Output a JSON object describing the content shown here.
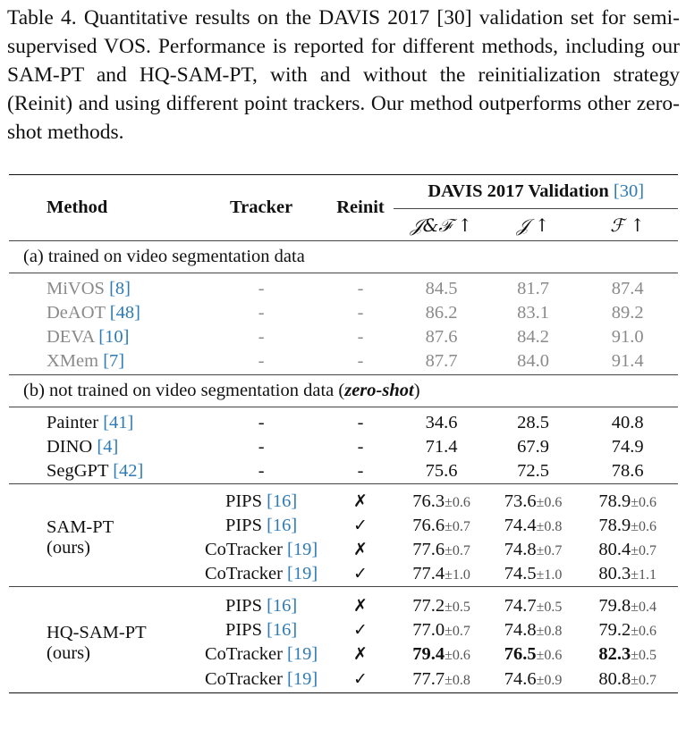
{
  "caption": "Table 4. Quantitative results on the DAVIS 2017 [30] validation set for semi-supervised VOS. Performance is reported for different methods, including our SAM-PT and HQ-SAM-PT, with and without the reinitialization strategy (Reinit) and using different point trackers. Our method outperforms other zero-shot methods.",
  "headers": {
    "method": "Method",
    "tracker": "Tracker",
    "reinit": "Reinit",
    "group": "DAVIS 2017 Validation",
    "group_ref": "[30]",
    "jf": "𝒥&ℱ ↑",
    "j": "𝒥 ↑",
    "f": "ℱ ↑"
  },
  "section_a": "(a) trained on video segmentation data",
  "section_b_prefix": "(b) not trained on video segmentation data (",
  "section_b_emph": "zero-shot",
  "section_b_suffix": ")",
  "rows_a": [
    {
      "name": "MiVOS",
      "ref": "[8]",
      "tracker": "-",
      "reinit": "-",
      "jf": "84.5",
      "j": "81.7",
      "f": "87.4"
    },
    {
      "name": "DeAOT",
      "ref": "[48]",
      "tracker": "-",
      "reinit": "-",
      "jf": "86.2",
      "j": "83.1",
      "f": "89.2"
    },
    {
      "name": "DEVA",
      "ref": "[10]",
      "tracker": "-",
      "reinit": "-",
      "jf": "87.6",
      "j": "84.2",
      "f": "91.0"
    },
    {
      "name": "XMem",
      "ref": "[7]",
      "tracker": "-",
      "reinit": "-",
      "jf": "87.7",
      "j": "84.0",
      "f": "91.4"
    }
  ],
  "rows_b": [
    {
      "name": "Painter",
      "ref": "[41]",
      "tracker": "-",
      "reinit": "-",
      "jf": "34.6",
      "j": "28.5",
      "f": "40.8"
    },
    {
      "name": "DINO",
      "ref": "[4]",
      "tracker": "-",
      "reinit": "-",
      "jf": "71.4",
      "j": "67.9",
      "f": "74.9"
    },
    {
      "name": "SegGPT",
      "ref": "[42]",
      "tracker": "-",
      "reinit": "-",
      "jf": "75.6",
      "j": "72.5",
      "f": "78.6"
    }
  ],
  "group_sampt": {
    "label1": "SAM-PT",
    "label2": "(ours)",
    "rows": [
      {
        "tracker": "PIPS",
        "ref": "[16]",
        "reinit": "✗",
        "jf": "76.3",
        "jf_pm": "±0.6",
        "j": "73.6",
        "j_pm": "±0.6",
        "f": "78.9",
        "f_pm": "±0.6"
      },
      {
        "tracker": "PIPS",
        "ref": "[16]",
        "reinit": "✓",
        "jf": "76.6",
        "jf_pm": "±0.7",
        "j": "74.4",
        "j_pm": "±0.8",
        "f": "78.9",
        "f_pm": "±0.6"
      },
      {
        "tracker": "CoTracker",
        "ref": "[19]",
        "reinit": "✗",
        "jf": "77.6",
        "jf_pm": "±0.7",
        "j": "74.8",
        "j_pm": "±0.7",
        "f": "80.4",
        "f_pm": "±0.7"
      },
      {
        "tracker": "CoTracker",
        "ref": "[19]",
        "reinit": "✓",
        "jf": "77.4",
        "jf_pm": "±1.0",
        "j": "74.5",
        "j_pm": "±1.0",
        "f": "80.3",
        "f_pm": "±1.1"
      }
    ]
  },
  "group_hqsampt": {
    "label1": "HQ-SAM-PT",
    "label2": "(ours)",
    "rows": [
      {
        "tracker": "PIPS",
        "ref": "[16]",
        "reinit": "✗",
        "jf": "77.2",
        "jf_pm": "±0.5",
        "j": "74.7",
        "j_pm": "±0.5",
        "f": "79.8",
        "f_pm": "±0.4"
      },
      {
        "tracker": "PIPS",
        "ref": "[16]",
        "reinit": "✓",
        "jf": "77.0",
        "jf_pm": "±0.7",
        "j": "74.8",
        "j_pm": "±0.8",
        "f": "79.2",
        "f_pm": "±0.6"
      },
      {
        "tracker": "CoTracker",
        "ref": "[19]",
        "reinit": "✗",
        "jf": "79.4",
        "jf_pm": "±0.6",
        "j": "76.5",
        "j_pm": "±0.6",
        "f": "82.3",
        "f_pm": "±0.5"
      },
      {
        "tracker": "CoTracker",
        "ref": "[19]",
        "reinit": "✓",
        "jf": "77.7",
        "jf_pm": "±0.8",
        "j": "74.6",
        "j_pm": "±0.9",
        "f": "80.8",
        "f_pm": "±0.7"
      }
    ]
  }
}
